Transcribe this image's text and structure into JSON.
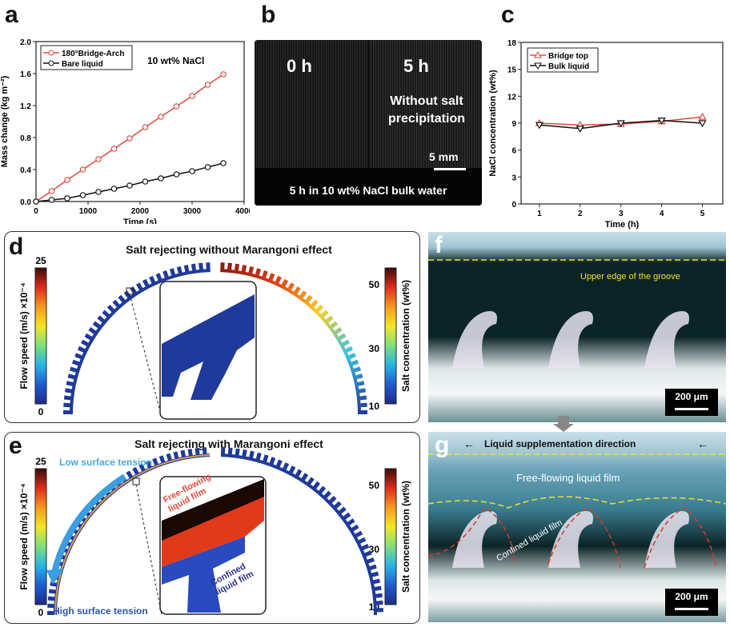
{
  "panels": {
    "a": {
      "label": "a"
    },
    "b": {
      "label": "b",
      "left_text": "0 h",
      "right_text": "5 h",
      "note": "Without salt precipitation",
      "scale": "5 mm",
      "caption": "5 h in 10 wt% NaCl bulk water"
    },
    "c": {
      "label": "c"
    },
    "d": {
      "label": "d",
      "title": "Salt rejecting without Marangoni effect",
      "cb_left_label": "Flow speed (m/s) ×10⁻⁴",
      "cb_left_max": "25",
      "cb_left_min": "0",
      "cb_right_label": "Salt concentration (wt%)",
      "cb_right_ticks": [
        "50",
        "30",
        "10"
      ]
    },
    "e": {
      "label": "e",
      "title": "Salt rejecting with Marangoni effect",
      "low": "Low surface tension",
      "high": "High surface tension",
      "free": "Free-flowing liquid film",
      "confined": "Confined liquid film",
      "cb_left_label": "Flow speed (m/s) ×10⁻⁴",
      "cb_left_max": "25",
      "cb_left_min": "0",
      "cb_right_label": "Salt concentration (wt%)",
      "cb_right_ticks": [
        "50",
        "30",
        "10"
      ]
    },
    "f": {
      "label": "f",
      "edge": "Upper edge of the groove",
      "scale": "200 μm"
    },
    "g": {
      "label": "g",
      "direction": "Liquid supplementation direction",
      "free": "Free-flowing liquid film",
      "confined": "Confined liquid film",
      "scale": "200 μm"
    }
  },
  "chart_data": [
    {
      "type": "line",
      "title": "",
      "annotation": "10 wt% NaCl",
      "xlabel": "Time (s)",
      "ylabel": "Mass change (kg m⁻²)",
      "xlim": [
        0,
        4000
      ],
      "ylim": [
        0,
        2.0
      ],
      "xticks": [
        "0",
        "1000",
        "2000",
        "3000",
        "4000"
      ],
      "yticks": [
        "0.0",
        "0.4",
        "0.8",
        "1.2",
        "1.6",
        "2.0"
      ],
      "legend": "top-left",
      "x": [
        0,
        300,
        600,
        900,
        1200,
        1500,
        1800,
        2100,
        2400,
        2700,
        3000,
        3300,
        3600
      ],
      "series": [
        {
          "name": "180°Bridge-Arch",
          "color": "#e04a3a",
          "marker": "circle",
          "values": [
            0,
            0.13,
            0.27,
            0.4,
            0.53,
            0.66,
            0.79,
            0.93,
            1.06,
            1.19,
            1.32,
            1.46,
            1.59
          ]
        },
        {
          "name": "Bare liquid",
          "color": "#111111",
          "marker": "circle",
          "values": [
            0,
            0.02,
            0.04,
            0.08,
            0.12,
            0.16,
            0.2,
            0.25,
            0.29,
            0.34,
            0.38,
            0.43,
            0.48
          ]
        }
      ]
    },
    {
      "type": "line",
      "title": "",
      "xlabel": "Time (h)",
      "ylabel": "NaCl concentration (wt%)",
      "xlim": [
        0.55,
        5.5
      ],
      "ylim": [
        0,
        18
      ],
      "xticks": [
        "1",
        "2",
        "3",
        "4",
        "5"
      ],
      "yticks": [
        "0",
        "3",
        "6",
        "9",
        "12",
        "15",
        "18"
      ],
      "legend": "top-left",
      "x": [
        1,
        2,
        3,
        4,
        5
      ],
      "series": [
        {
          "name": "Bridge top",
          "color": "#e04a3a",
          "marker": "triangle-up",
          "values": [
            9.0,
            8.8,
            8.9,
            9.2,
            9.7
          ]
        },
        {
          "name": "Bulk liquid",
          "color": "#111111",
          "marker": "triangle-down",
          "values": [
            8.8,
            8.4,
            9.0,
            9.3,
            9.0
          ]
        }
      ]
    }
  ]
}
